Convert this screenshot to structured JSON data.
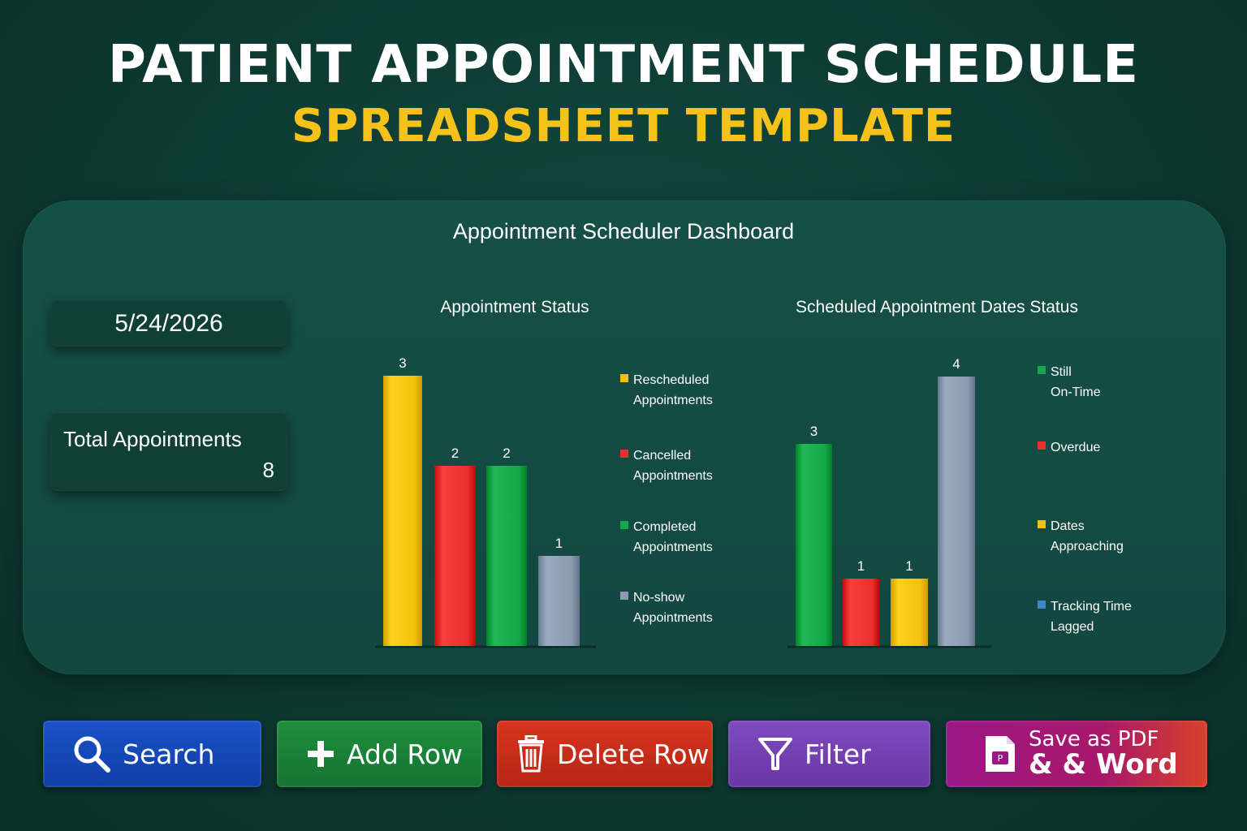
{
  "header": {
    "title_line1": "PATIENT APPOINTMENT SCHEDULE",
    "title_line2": "SPREADSHEET TEMPLATE"
  },
  "dashboard": {
    "title": "Appointment Scheduler Dashboard",
    "date": "5/24/2026",
    "total_label": "Total Appointments",
    "total_value": "8"
  },
  "chart_data": [
    {
      "type": "bar",
      "title": "Appointment Status",
      "categories": [
        "Rescheduled Appointments",
        "Cancelled Appointments",
        "Completed Appointments",
        "No-show Appointments"
      ],
      "values": [
        3,
        2,
        2,
        1
      ],
      "colors": [
        "#f4c20d",
        "#e8302c",
        "#13a84a",
        "#8c9bb1"
      ],
      "legend_position": "right",
      "xlabel": "",
      "ylabel": "",
      "ylim": [
        0,
        3
      ]
    },
    {
      "type": "bar",
      "title": "Scheduled Appointment Dates Status",
      "categories": [
        "Still On-Time",
        "Overdue",
        "Dates Approaching",
        "Tracking Time Lagged"
      ],
      "values": [
        3,
        1,
        1,
        4
      ],
      "colors": [
        "#13a84a",
        "#e8302c",
        "#f4c20d",
        "#8c9bb1"
      ],
      "legend_colors": [
        "#13a84a",
        "#e8302c",
        "#f4c20d",
        "#3f86c9"
      ],
      "legend_position": "right",
      "xlabel": "",
      "ylabel": "",
      "ylim": [
        0,
        4
      ]
    }
  ],
  "buttons": {
    "search": "Search",
    "add_row": "Add Row",
    "delete_row": "Delete Row",
    "filter": "Filter",
    "save_line1": "Save as PDF",
    "save_line2": "& & Word"
  },
  "icons": {
    "search": "magnifier-icon",
    "add": "plus-icon",
    "delete": "trash-icon",
    "filter": "funnel-icon",
    "save": "document-icon"
  }
}
